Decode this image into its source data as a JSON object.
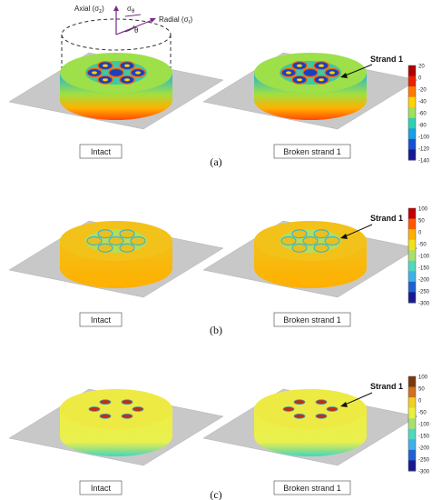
{
  "axes_labels": {
    "axial": "Axial (σ",
    "axial_sub": "z",
    "axial_close": ")",
    "theta": "σ",
    "theta_sub": "θ",
    "radial": "Radial (σ",
    "radial_sub": "r",
    "radial_close": ")",
    "angle": "θ"
  },
  "panels": [
    {
      "id": "a",
      "caption": "(a)",
      "left_label": "Intact",
      "right_label": "Broken strand 1",
      "pointer": "Strand 1",
      "colorbar": {
        "ticks": [
          "20",
          "0",
          "-20",
          "-40",
          "-60",
          "-80",
          "-100",
          "-120",
          "-140"
        ],
        "colors": [
          "#b00000",
          "#e81f00",
          "#ff7a00",
          "#ffd400",
          "#a0e05a",
          "#30d0b0",
          "#1a9fe0",
          "#1a50d0",
          "#1a1a90"
        ]
      }
    },
    {
      "id": "b",
      "caption": "(b)",
      "left_label": "Intact",
      "right_label": "Broken strand 1",
      "pointer": "Strand 1",
      "colorbar": {
        "ticks": [
          "100",
          "50",
          "0",
          "-50",
          "-100",
          "-150",
          "-200",
          "-250",
          "-300"
        ],
        "colors": [
          "#c00000",
          "#ff5a00",
          "#ffb000",
          "#f0e020",
          "#a8e070",
          "#50d8c0",
          "#40b0e8",
          "#2060d0",
          "#1a1a90"
        ]
      }
    },
    {
      "id": "c",
      "caption": "(c)",
      "left_label": "Intact",
      "right_label": "Broken strand 1",
      "pointer": "Strand 1",
      "colorbar": {
        "ticks": [
          "100",
          "50",
          "0",
          "-50",
          "-100",
          "-150",
          "-200",
          "-250",
          "-300"
        ],
        "colors": [
          "#7a3a10",
          "#d07020",
          "#f0d020",
          "#e8f040",
          "#a8e070",
          "#50d8c0",
          "#40b0e8",
          "#2060d0",
          "#1a1a90"
        ]
      }
    }
  ]
}
